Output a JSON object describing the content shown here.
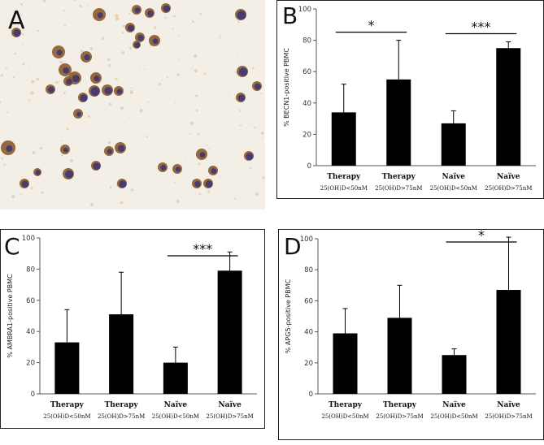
{
  "panel_a": {
    "letter": "A",
    "colors": {
      "background": "#f3efe6",
      "cell_brown": "#8a5a2b",
      "cell_purple": "#3a3478",
      "debris": "#d9c9a8"
    }
  },
  "chart_data": [
    {
      "panel": "B",
      "type": "bar",
      "categories": [
        "Therapy",
        "Therapy",
        "Naïve",
        "Naïve"
      ],
      "subcategories": [
        "25(OH)D<50nM",
        "25(OH)D>75nM",
        "25(OH)D<50nM",
        "25(OH)D>75nM"
      ],
      "values": [
        34,
        55,
        27,
        75
      ],
      "errors": [
        18,
        25,
        8,
        4
      ],
      "ylabel": "% BECN1-positive PBMC",
      "ylim": [
        0,
        100
      ],
      "yticks": [
        0,
        20,
        40,
        60,
        80,
        100
      ],
      "significance": [
        {
          "from": 0,
          "to": 1,
          "label": "*"
        },
        {
          "from": 2,
          "to": 3,
          "label": "***"
        }
      ]
    },
    {
      "panel": "C",
      "type": "bar",
      "categories": [
        "Therapy",
        "Therapy",
        "Naïve",
        "Naïve"
      ],
      "subcategories": [
        "25(OH)D<50nM",
        "25(OH)D>75nM",
        "25(OH)D<50nM",
        "25(OH)D>75nM"
      ],
      "values": [
        33,
        51,
        20,
        79
      ],
      "errors": [
        21,
        27,
        10,
        12
      ],
      "ylabel": "% AMBRA1-positive PBMC",
      "ylim": [
        0,
        100
      ],
      "yticks": [
        0,
        20,
        40,
        60,
        80,
        100
      ],
      "significance": [
        {
          "from": 2,
          "to": 3,
          "label": "***"
        }
      ]
    },
    {
      "panel": "D",
      "type": "bar",
      "categories": [
        "Therapy",
        "Therapy",
        "Naïve",
        "Naïve"
      ],
      "subcategories": [
        "25(OH)D<50nM",
        "25(OH)D>75nM",
        "25(OH)D<50nM",
        "25(OH)D>75nM"
      ],
      "values": [
        39,
        49,
        25,
        67
      ],
      "errors": [
        16,
        21,
        4,
        34
      ],
      "ylabel": "% APG5-positive PBMC",
      "ylim": [
        0,
        100
      ],
      "yticks": [
        0,
        20,
        40,
        60,
        80,
        100
      ],
      "significance": [
        {
          "from": 2,
          "to": 3,
          "label": "*"
        }
      ]
    }
  ]
}
